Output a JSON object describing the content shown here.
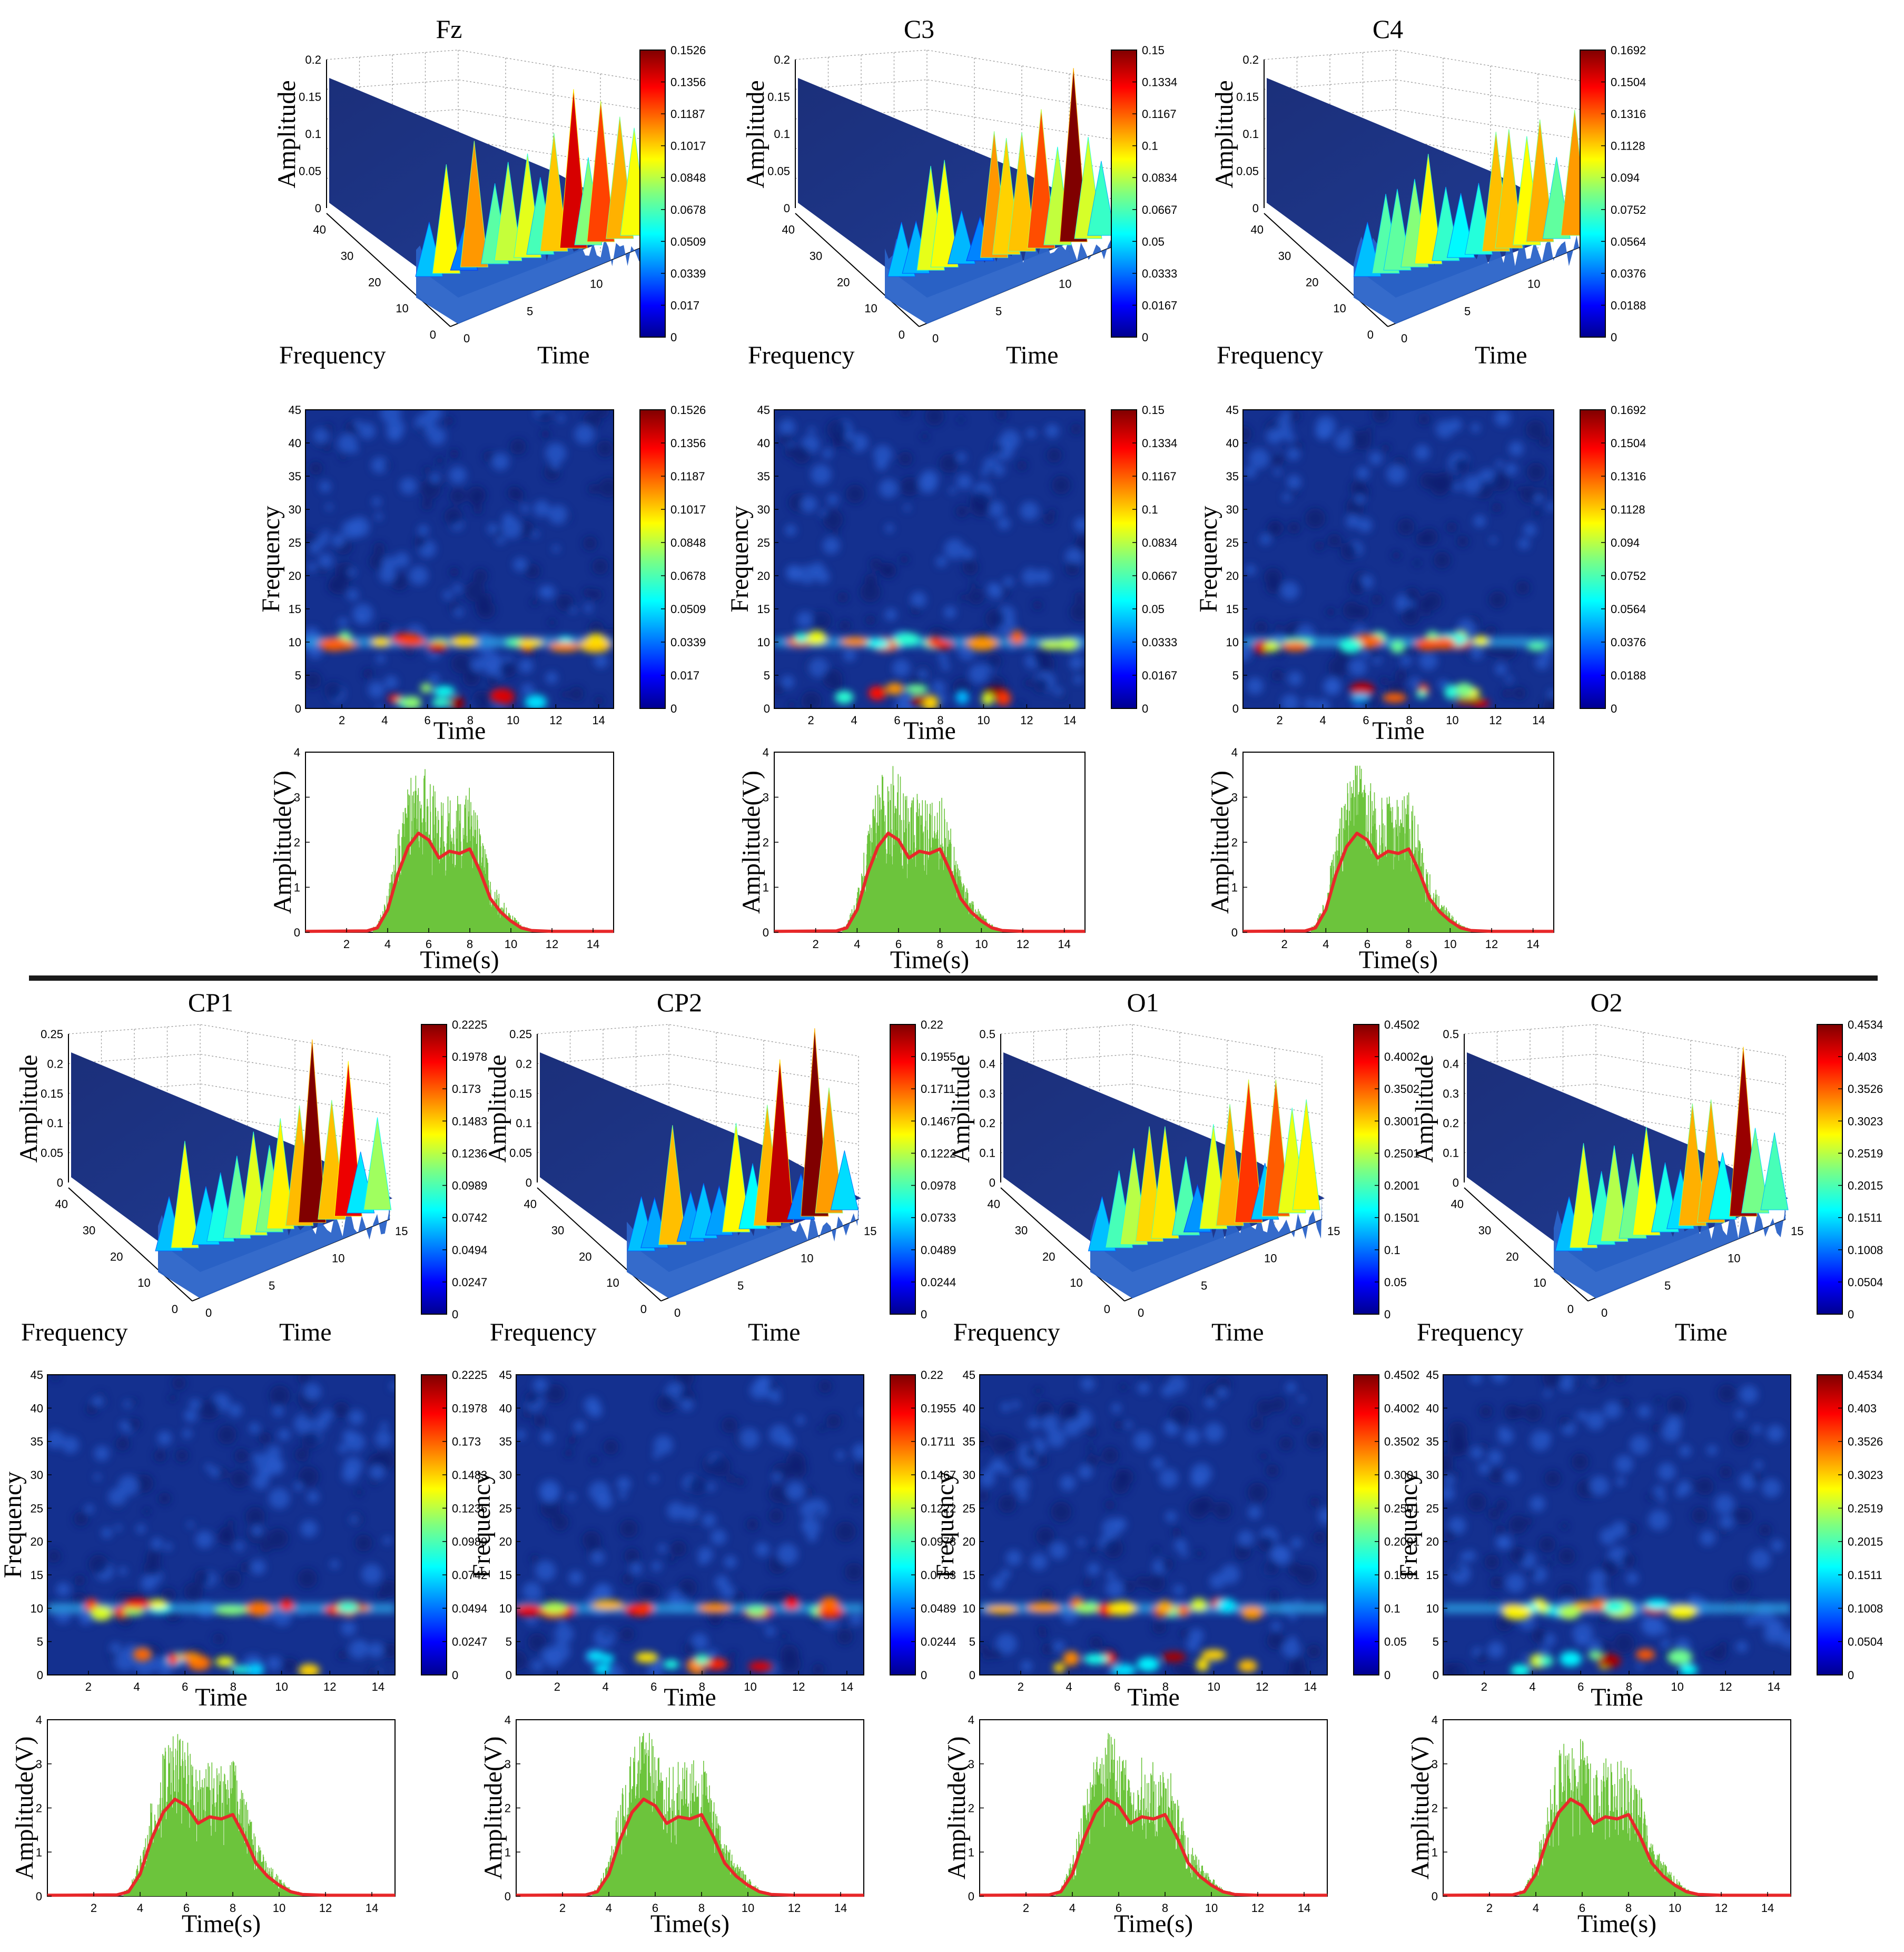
{
  "figure_title": "",
  "chart_data": [
    {
      "channel": "Fz",
      "colorbar_ticks": [
        "0.1526",
        "0.1356",
        "0.1187",
        "0.1017",
        "0.0848",
        "0.0678",
        "0.0509",
        "0.0339",
        "0.017",
        "0"
      ],
      "surface_zticks": [
        "0",
        "0.05",
        "0.1",
        "0.15",
        "0.2"
      ],
      "surface_zlim": [
        0,
        0.2
      ]
    },
    {
      "channel": "C3",
      "colorbar_ticks": [
        "0.15",
        "0.1334",
        "0.1167",
        "0.1",
        "0.0834",
        "0.0667",
        "0.05",
        "0.0333",
        "0.0167",
        "0"
      ],
      "surface_zticks": [
        "0",
        "0.05",
        "0.1",
        "0.15",
        "0.2"
      ],
      "surface_zlim": [
        0,
        0.2
      ]
    },
    {
      "channel": "C4",
      "colorbar_ticks": [
        "0.1692",
        "0.1504",
        "0.1316",
        "0.1128",
        "0.094",
        "0.0752",
        "0.0564",
        "0.0376",
        "0.0188",
        "0"
      ],
      "surface_zticks": [
        "0",
        "0.05",
        "0.1",
        "0.15",
        "0.2"
      ],
      "surface_zlim": [
        0,
        0.2
      ]
    },
    {
      "channel": "CP1",
      "colorbar_ticks": [
        "0.2225",
        "0.1978",
        "0.173",
        "0.1483",
        "0.1236",
        "0.0989",
        "0.0742",
        "0.0494",
        "0.0247",
        "0"
      ],
      "surface_zticks": [
        "0",
        "0.05",
        "0.1",
        "0.15",
        "0.2",
        "0.25"
      ],
      "surface_zlim": [
        0,
        0.25
      ]
    },
    {
      "channel": "CP2",
      "colorbar_ticks": [
        "0.22",
        "0.1955",
        "0.1711",
        "0.1467",
        "0.1222",
        "0.0978",
        "0.0733",
        "0.0489",
        "0.0244",
        "0"
      ],
      "surface_zticks": [
        "0",
        "0.05",
        "0.1",
        "0.15",
        "0.2",
        "0.25"
      ],
      "surface_zlim": [
        0,
        0.25
      ]
    },
    {
      "channel": "O1",
      "colorbar_ticks": [
        "0.4502",
        "0.4002",
        "0.3502",
        "0.3001",
        "0.2501",
        "0.2001",
        "0.1501",
        "0.1",
        "0.05",
        "0"
      ],
      "surface_zticks": [
        "0",
        "0.1",
        "0.2",
        "0.3",
        "0.4",
        "0.5"
      ],
      "surface_zlim": [
        0,
        0.5
      ]
    },
    {
      "channel": "O2",
      "colorbar_ticks": [
        "0.4534",
        "0.403",
        "0.3526",
        "0.3023",
        "0.2519",
        "0.2015",
        "0.1511",
        "0.1008",
        "0.0504",
        "0"
      ],
      "surface_zticks": [
        "0",
        "0.1",
        "0.2",
        "0.3",
        "0.4",
        "0.5"
      ],
      "surface_zlim": [
        0,
        0.5
      ]
    }
  ],
  "shared": {
    "surface": {
      "type": "surface",
      "xlabel": "Frequency",
      "ylabel": "Time",
      "zlabel": "Amplitude",
      "freq_ticks": [
        "0",
        "10",
        "20",
        "30",
        "40"
      ],
      "time_ticks": [
        "0",
        "5",
        "10",
        "15"
      ]
    },
    "spectrogram": {
      "type": "heatmap",
      "xlabel": "Time",
      "ylabel": "Frequency",
      "xticks": [
        "2",
        "4",
        "6",
        "8",
        "10",
        "12",
        "14"
      ],
      "xlim": [
        0.3,
        14.7
      ],
      "yticks": [
        "0",
        "5",
        "10",
        "15",
        "20",
        "25",
        "30",
        "35",
        "40",
        "45"
      ],
      "ylim": [
        0,
        45
      ],
      "alpha_band_hz": 10,
      "peak_band_hz": 1
    },
    "waveform": {
      "type": "line",
      "xlabel": "Time(s)",
      "ylabel": "Amplitude(V)",
      "xticks": [
        "2",
        "4",
        "6",
        "8",
        "10",
        "12",
        "14"
      ],
      "xlim": [
        0,
        15
      ],
      "yticks": [
        "0",
        "1",
        "2",
        "3",
        "4"
      ],
      "ylim": [
        0,
        4
      ],
      "series": [
        {
          "name": "raw",
          "color": "#6cc43c"
        },
        {
          "name": "envelope",
          "color": "#e8282a",
          "points": [
            [
              0,
              0.02
            ],
            [
              3,
              0.03
            ],
            [
              3.5,
              0.1
            ],
            [
              4,
              0.5
            ],
            [
              4.5,
              1.3
            ],
            [
              5,
              1.9
            ],
            [
              5.5,
              2.2
            ],
            [
              6,
              2.05
            ],
            [
              6.5,
              1.65
            ],
            [
              7,
              1.8
            ],
            [
              7.5,
              1.75
            ],
            [
              8,
              1.85
            ],
            [
              8.5,
              1.35
            ],
            [
              9,
              0.75
            ],
            [
              9.5,
              0.45
            ],
            [
              10,
              0.25
            ],
            [
              10.5,
              0.1
            ],
            [
              11,
              0.04
            ],
            [
              12,
              0.02
            ],
            [
              15,
              0.02
            ]
          ]
        }
      ]
    }
  },
  "colors": {
    "jet_low": "#00008f",
    "jet_high": "#800000",
    "divider": "#1a1a1a"
  }
}
